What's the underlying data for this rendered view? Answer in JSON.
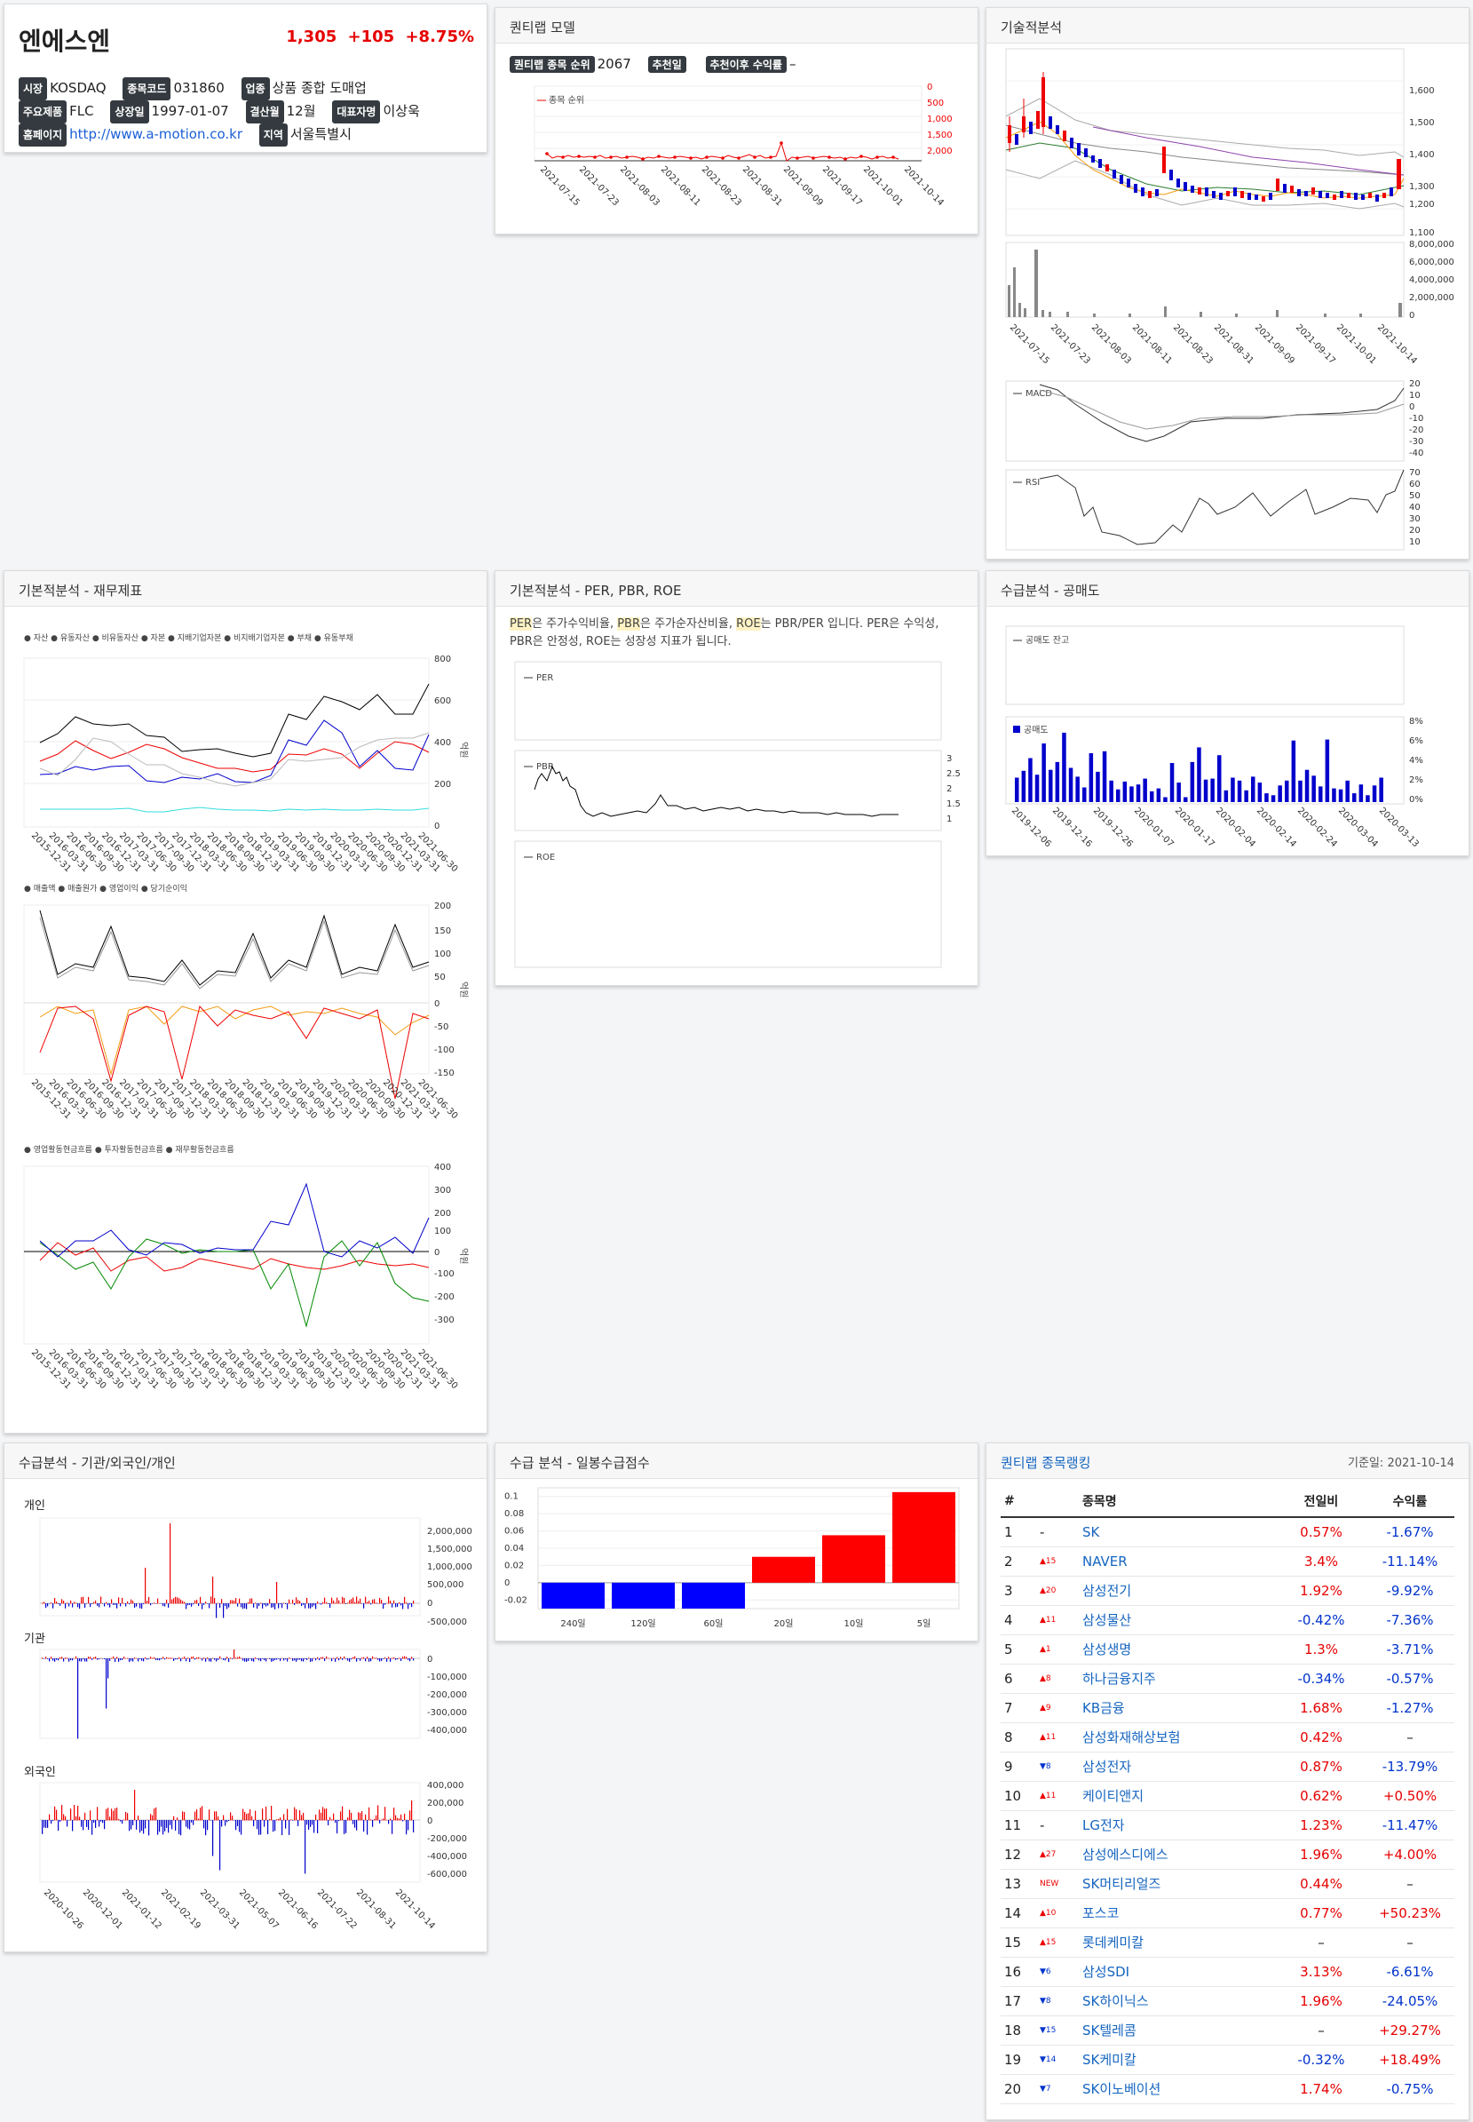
{
  "stock": {
    "name": "엔에스엔",
    "price": "1,305",
    "change": "+105",
    "pct": "+8.75%",
    "market_label": "시장",
    "market": "KOSDAQ",
    "code_label": "종목코드",
    "code": "031860",
    "sector_label": "업종",
    "sector": "상품 종합 도매업",
    "product_label": "주요제품",
    "product": "FLC",
    "listed_label": "상장일",
    "listed": "1997-01-07",
    "fy_label": "결산월",
    "fy": "12월",
    "ceo_label": "대표자명",
    "ceo": "이상욱",
    "home_label": "홈페이지",
    "home": "http://www.a-motion.co.kr",
    "region_label": "지역",
    "region": "서울특별시"
  },
  "quantylab": {
    "title": "퀀티랩 모델",
    "rank_label": "퀀티랩 종목 순위",
    "rank": "2067",
    "date_label": "추천일",
    "ret_label": "추천이후 수익률",
    "ret": "–",
    "legend": "종목 순위",
    "yticks": [
      "0",
      "500",
      "1,000",
      "1,500",
      "2,000"
    ],
    "xticks": [
      "2021-07-15",
      "2021-07-23",
      "2021-08-03",
      "2021-08-11",
      "2021-08-23",
      "2021-08-31",
      "2021-09-09",
      "2021-09-17",
      "2021-10-01",
      "2021-10-14"
    ]
  },
  "tech": {
    "title": "기술적분석",
    "price_ticks": [
      "1,600",
      "1,500",
      "1,400",
      "1,300",
      "1,200",
      "1,100"
    ],
    "vol_ticks": [
      "8,000,000",
      "6,000,000",
      "4,000,000",
      "2,000,000",
      "0"
    ],
    "macd_label": "MACD",
    "macd_ticks": [
      "20",
      "10",
      "0",
      "-10",
      "-20",
      "-30",
      "-40"
    ],
    "rsi_label": "RSI",
    "rsi_ticks": [
      "70",
      "60",
      "50",
      "40",
      "30",
      "20",
      "10"
    ]
  },
  "fin": {
    "title": "기본적분석 - 재무제표",
    "legend1": [
      "자산",
      "유동자산",
      "비유동자산",
      "자본",
      "지배기업자본",
      "비지배기업자본",
      "부채",
      "유동부채"
    ],
    "legend2": [
      "매출액",
      "매출원가",
      "영업이익",
      "당기순이익"
    ],
    "legend3": [
      "영업활동현금흐름",
      "투자활동현금흐름",
      "재무활동현금흐름"
    ],
    "unit": "억원",
    "t1": [
      "800",
      "600",
      "400",
      "200",
      "0"
    ],
    "t2": [
      "200",
      "150",
      "100",
      "50",
      "0",
      "-50",
      "-100",
      "-150"
    ],
    "t3": [
      "400",
      "300",
      "200",
      "100",
      "0",
      "-100",
      "-200",
      "-300"
    ],
    "dates": [
      "2015-12-31",
      "2016-03-31",
      "2016-06-30",
      "2016-09-30",
      "2016-12-31",
      "2017-03-31",
      "2017-06-30",
      "2017-09-30",
      "2017-12-31",
      "2018-03-31",
      "2018-06-30",
      "2018-09-30",
      "2018-12-31",
      "2019-03-31",
      "2019-06-30",
      "2019-09-30",
      "2019-12-31",
      "2020-03-31",
      "2020-06-30",
      "2020-09-30",
      "2020-12-31",
      "2021-03-31",
      "2021-06-30"
    ]
  },
  "per": {
    "title": "기본적분석 - PER, PBR, ROE",
    "desc_a": "PER",
    "desc_b": "은 주가수익비율, ",
    "desc_c": "PBR",
    "desc_d": "은 주가순자산비율, ",
    "desc_e": "ROE",
    "desc_f": "는 PBR/PER 입니다. PER은 수익성, PBR은 안정성, ROE는 성장성 지표가 됩니다.",
    "per_label": "PER",
    "pbr_label": "PBR",
    "roe_label": "ROE",
    "pbr_ticks": [
      "3",
      "2.5",
      "2",
      "1.5",
      "1"
    ]
  },
  "short": {
    "title": "수급분석 - 공매도",
    "legend1": "공매도 잔고",
    "legend2": "공매도",
    "ticks": [
      "8%",
      "6%",
      "4%",
      "2%",
      "0%"
    ],
    "xticks": [
      "2019-12-06",
      "2019-12-16",
      "2019-12-26",
      "2020-01-07",
      "2020-01-17",
      "2020-02-04",
      "2020-02-14",
      "2020-02-24",
      "2020-03-04",
      "2020-03-13"
    ]
  },
  "investor": {
    "title": "수급분석 - 기관/외국인/개인",
    "ind_label": "개인",
    "inst_label": "기관",
    "for_label": "외국인",
    "ind_ticks": [
      "2,000,000",
      "1,500,000",
      "1,000,000",
      "500,000",
      "0",
      "-500,000"
    ],
    "inst_ticks": [
      "0",
      "-100,000",
      "-200,000",
      "-300,000",
      "-400,000"
    ],
    "for_ticks": [
      "400,000",
      "200,000",
      "0",
      "-200,000",
      "-400,000",
      "-600,000"
    ],
    "xticks": [
      "2020-10-26",
      "2020-12-01",
      "2021-01-12",
      "2021-02-19",
      "2021-03-31",
      "2021-05-07",
      "2021-06-16",
      "2021-07-22",
      "2021-08-31",
      "2021-10-14"
    ]
  },
  "score": {
    "title": "수급 분석 - 일봉수급점수",
    "ticks": [
      "0.1",
      "0.08",
      "0.06",
      "0.04",
      "0.02",
      "0",
      "-0.02"
    ]
  },
  "ranking": {
    "title": "퀀티랩 종목랭킹",
    "base_date": "기준일: 2021-10-14",
    "h_num": "#",
    "h_name": "종목명",
    "h_prev": "전일비",
    "h_ret": "수익률",
    "rows": [
      {
        "n": "1",
        "mv": "-",
        "name": "SK",
        "prev": "0.57%",
        "ret": "-1.67%"
      },
      {
        "n": "2",
        "mv": "▲15",
        "name": "NAVER",
        "prev": "3.4%",
        "ret": "-11.14%"
      },
      {
        "n": "3",
        "mv": "▲20",
        "name": "삼성전기",
        "prev": "1.92%",
        "ret": "-9.92%"
      },
      {
        "n": "4",
        "mv": "▲11",
        "name": "삼성물산",
        "prev": "-0.42%",
        "ret": "-7.36%"
      },
      {
        "n": "5",
        "mv": "▲1",
        "name": "삼성생명",
        "prev": "1.3%",
        "ret": "-3.71%"
      },
      {
        "n": "6",
        "mv": "▲8",
        "name": "하나금융지주",
        "prev": "-0.34%",
        "ret": "-0.57%"
      },
      {
        "n": "7",
        "mv": "▲9",
        "name": "KB금융",
        "prev": "1.68%",
        "ret": "-1.27%"
      },
      {
        "n": "8",
        "mv": "▲11",
        "name": "삼성화재해상보험",
        "prev": "0.42%",
        "ret": "–"
      },
      {
        "n": "9",
        "mv": "▼8",
        "name": "삼성전자",
        "prev": "0.87%",
        "ret": "-13.79%"
      },
      {
        "n": "10",
        "mv": "▲11",
        "name": "케이티앤지",
        "prev": "0.62%",
        "ret": "+0.50%"
      },
      {
        "n": "11",
        "mv": "-",
        "name": "LG전자",
        "prev": "1.23%",
        "ret": "-11.47%"
      },
      {
        "n": "12",
        "mv": "▲27",
        "name": "삼성에스디에스",
        "prev": "1.96%",
        "ret": "+4.00%"
      },
      {
        "n": "13",
        "mv": "NEW",
        "name": "SK머티리얼즈",
        "prev": "0.44%",
        "ret": "–"
      },
      {
        "n": "14",
        "mv": "▲10",
        "name": "포스코",
        "prev": "0.77%",
        "ret": "+50.23%"
      },
      {
        "n": "15",
        "mv": "▲15",
        "name": "롯데케미칼",
        "prev": "–",
        "ret": "–"
      },
      {
        "n": "16",
        "mv": "▼6",
        "name": "삼성SDI",
        "prev": "3.13%",
        "ret": "-6.61%"
      },
      {
        "n": "17",
        "mv": "▼8",
        "name": "SK하이닉스",
        "prev": "1.96%",
        "ret": "-24.05%"
      },
      {
        "n": "18",
        "mv": "▼15",
        "name": "SK텔레콤",
        "prev": "–",
        "ret": "+29.27%"
      },
      {
        "n": "19",
        "mv": "▼14",
        "name": "SK케미칼",
        "prev": "-0.32%",
        "ret": "+18.49%"
      },
      {
        "n": "20",
        "mv": "▼7",
        "name": "SK이노베이션",
        "prev": "1.74%",
        "ret": "-0.75%"
      }
    ]
  },
  "chart_data": [
    {
      "type": "bar",
      "title": "수급 분석 - 일봉수급점수",
      "categories": [
        "240일",
        "120일",
        "60일",
        "20일",
        "10일",
        "5일"
      ],
      "values": [
        -0.03,
        -0.03,
        -0.03,
        0.03,
        0.055,
        0.105
      ],
      "ylim": [
        -0.03,
        0.11
      ]
    }
  ]
}
